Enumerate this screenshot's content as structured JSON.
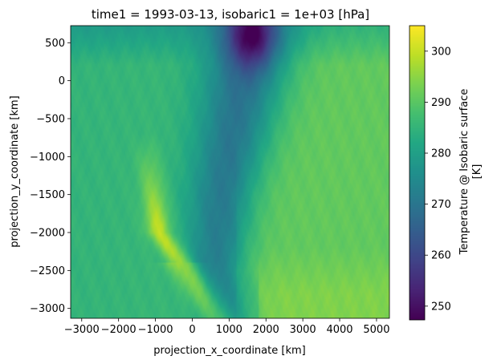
{
  "chart_data": {
    "type": "heatmap",
    "title": "time1 = 1993-03-13, isobaric1 = 1e+03 [hPa]",
    "xlabel": "projection_x_coordinate [km]",
    "ylabel": "projection_y_coordinate [km]",
    "xlim": [
      -3300,
      5350
    ],
    "ylim": [
      -3130,
      725
    ],
    "xticks": [
      -3000,
      -2000,
      -1000,
      0,
      1000,
      2000,
      3000,
      4000,
      5000
    ],
    "xtick_labels": [
      "−3000",
      "−2000",
      "−1000",
      "0",
      "1000",
      "2000",
      "3000",
      "4000",
      "5000"
    ],
    "yticks": [
      500,
      0,
      -500,
      -1000,
      -1500,
      -2000,
      -2500,
      -3000
    ],
    "ytick_labels": [
      "500",
      "0",
      "−500",
      "−1000",
      "−1500",
      "−2000",
      "−2500",
      "−3000"
    ],
    "colorbar": {
      "label_line1": "Temperature @ Isobaric surface",
      "label_line2": "[K]",
      "range": [
        247.3,
        305
      ],
      "ticks": [
        250,
        260,
        270,
        280,
        290,
        300
      ],
      "tick_labels": [
        "250",
        "260",
        "270",
        "280",
        "290",
        "300"
      ],
      "colormap": "viridis"
    },
    "field_summary": {
      "cold_core_center_km": [
        1600,
        600
      ],
      "cold_core_min_K": 247.5,
      "cold_tongue_axis": [
        [
          1600,
          600
        ],
        [
          1200,
          -500
        ],
        [
          800,
          -1500
        ],
        [
          600,
          -2500
        ],
        [
          900,
          -3130
        ]
      ],
      "warm_band_axis": [
        [
          -1200,
          -1000
        ],
        [
          -900,
          -2000
        ],
        [
          0,
          -2600
        ],
        [
          700,
          -3130
        ]
      ],
      "warm_band_max_K": 304,
      "west_background_K": 285,
      "east_background_K": 291
    }
  }
}
